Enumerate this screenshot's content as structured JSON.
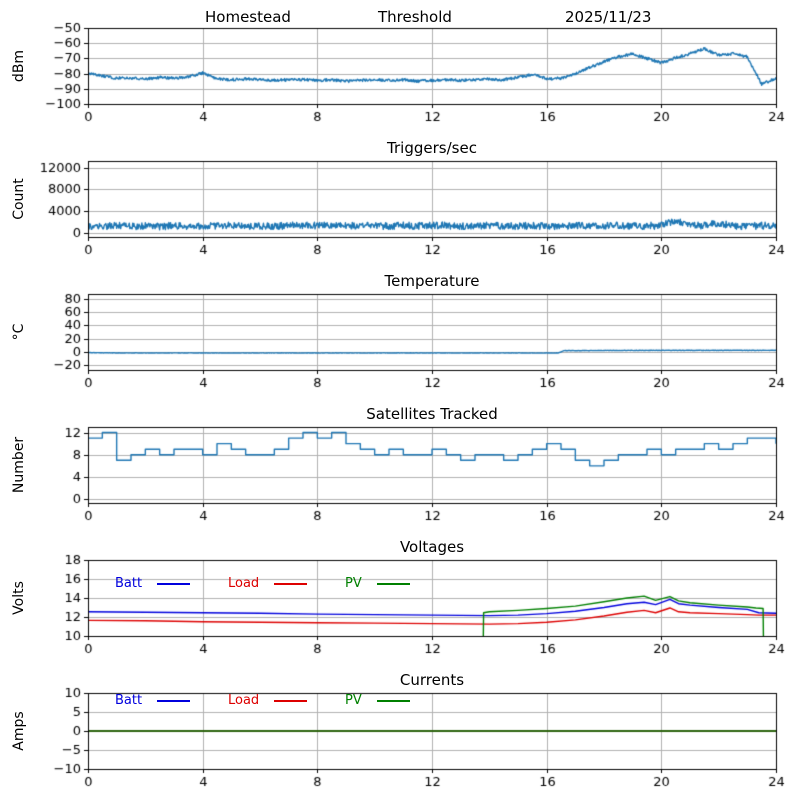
{
  "chart_data": [
    {
      "type": "line",
      "title": "",
      "title_parts": [
        "Homestead",
        "Threshold",
        "2025/11/23"
      ],
      "ylabel": "dBm",
      "xlim": [
        0,
        24
      ],
      "ylim": [
        -100,
        -50
      ],
      "xticks": [
        0,
        4,
        8,
        12,
        16,
        20,
        24
      ],
      "xtick_labels": [
        "0",
        "4",
        "8",
        "12",
        "16",
        "20",
        "24"
      ],
      "yticks": [
        -100,
        -90,
        -80,
        -70,
        -60,
        -50
      ],
      "ytick_labels": [
        "−100",
        "−90",
        "−80",
        "−70",
        "−60",
        "−50"
      ],
      "grid": true,
      "series": [
        {
          "name": "signal-strength",
          "color": "#1f77b4",
          "noise": 0.9,
          "x_start": 0,
          "x_step": 0.5,
          "y": [
            -80,
            -81.5,
            -83,
            -83,
            -83.5,
            -82.5,
            -83,
            -82,
            -79.5,
            -83.5,
            -84,
            -83.5,
            -84,
            -84.5,
            -84,
            -84,
            -84.5,
            -84,
            -85,
            -84.5,
            -84,
            -84.5,
            -84,
            -85,
            -84.5,
            -84,
            -84.5,
            -84,
            -83.5,
            -84,
            -82.5,
            -80.5,
            -83.5,
            -83,
            -80,
            -76,
            -72,
            -69,
            -67,
            -70,
            -73,
            -69.5,
            -67,
            -63.5,
            -68,
            -67,
            -69,
            -87,
            -83
          ]
        }
      ]
    },
    {
      "type": "line",
      "title": "Triggers/sec",
      "ylabel": "Count",
      "xlim": [
        0,
        24
      ],
      "ylim": [
        -800,
        13200
      ],
      "xticks": [
        0,
        4,
        8,
        12,
        16,
        20,
        24
      ],
      "xtick_labels": [
        "0",
        "4",
        "8",
        "12",
        "16",
        "20",
        "24"
      ],
      "yticks": [
        0,
        4000,
        8000,
        12000
      ],
      "ytick_labels": [
        "0",
        "4000",
        "8000",
        "12000"
      ],
      "grid": true,
      "series": [
        {
          "name": "trigger-rate",
          "color": "#1f77b4",
          "noise": 650,
          "x_start": 0,
          "x_step": 0.5,
          "y": [
            1250,
            1150,
            1300,
            1200,
            1250,
            1150,
            1300,
            1200,
            1100,
            1250,
            1300,
            1200,
            1250,
            1150,
            1300,
            1350,
            1300,
            1400,
            1350,
            1300,
            1250,
            1200,
            1300,
            1250,
            1350,
            1300,
            1200,
            1250,
            1300,
            1200,
            1250,
            1300,
            1200,
            1250,
            1300,
            1200,
            1250,
            1300,
            1200,
            1250,
            1300,
            2350,
            1250,
            1300,
            1800,
            1250,
            1200,
            1300,
            1250
          ]
        }
      ]
    },
    {
      "type": "line",
      "title": "Temperature",
      "ylabel": "°C",
      "xlim": [
        0,
        24
      ],
      "ylim": [
        -28,
        88
      ],
      "xticks": [
        0,
        4,
        8,
        12,
        16,
        20,
        24
      ],
      "xtick_labels": [
        "0",
        "4",
        "8",
        "12",
        "16",
        "20",
        "24"
      ],
      "yticks": [
        -20,
        0,
        20,
        40,
        60,
        80
      ],
      "ytick_labels": [
        "−20",
        "0",
        "20",
        "40",
        "60",
        "80"
      ],
      "grid": true,
      "series": [
        {
          "name": "temperature",
          "color": "#1f77b4",
          "noise": 0.3,
          "x": [
            0,
            1,
            2,
            4,
            6,
            8,
            10,
            12,
            14,
            16,
            16.4,
            16.6,
            17,
            18,
            20,
            22,
            24
          ],
          "y": [
            -1.5,
            -2,
            -2,
            -2,
            -2,
            -2,
            -2,
            -2,
            -2,
            -2,
            -2,
            1.5,
            1.6,
            1.8,
            2,
            2,
            2
          ]
        }
      ]
    },
    {
      "type": "line",
      "title": "Satellites Tracked",
      "ylabel": "Number",
      "xlim": [
        0,
        24
      ],
      "ylim": [
        -0.7,
        13
      ],
      "xticks": [
        0,
        4,
        8,
        12,
        16,
        20,
        24
      ],
      "xtick_labels": [
        "0",
        "4",
        "8",
        "12",
        "16",
        "20",
        "24"
      ],
      "yticks": [
        0,
        4,
        8,
        12
      ],
      "ytick_labels": [
        "0",
        "4",
        "8",
        "12"
      ],
      "grid": true,
      "series": [
        {
          "name": "satellites",
          "color": "#1f77b4",
          "step": true,
          "x_start": 0,
          "x_step": 0.5,
          "y": [
            11,
            12,
            7,
            8,
            9,
            8,
            9,
            9,
            8,
            10,
            9,
            8,
            8,
            9,
            11,
            12,
            11,
            12,
            10,
            9,
            8,
            9,
            8,
            8,
            9,
            8,
            7,
            8,
            8,
            7,
            8,
            9,
            10,
            9,
            7,
            6,
            7,
            8,
            8,
            9,
            8,
            9,
            9,
            10,
            9,
            10,
            11,
            11,
            10
          ]
        }
      ]
    },
    {
      "type": "line",
      "title": "Voltages",
      "ylabel": "Volts",
      "xlim": [
        0,
        24
      ],
      "ylim": [
        10,
        18
      ],
      "xticks": [
        0,
        4,
        8,
        12,
        16,
        20,
        24
      ],
      "xtick_labels": [
        "0",
        "4",
        "8",
        "12",
        "16",
        "20",
        "24"
      ],
      "yticks": [
        10,
        12,
        14,
        16,
        18
      ],
      "ytick_labels": [
        "10",
        "12",
        "14",
        "16",
        "18"
      ],
      "grid": true,
      "legend": [
        {
          "label": "Batt",
          "color": "#0000dd"
        },
        {
          "label": "Load",
          "color": "#dd0000"
        },
        {
          "label": "PV",
          "color": "#008000"
        }
      ],
      "series": [
        {
          "name": "batt-voltage",
          "color": "#0000dd",
          "x": [
            0,
            2,
            4,
            6,
            8,
            10,
            12,
            14,
            15,
            16,
            17,
            18,
            18.8,
            19.4,
            19.8,
            20.3,
            20.6,
            21,
            22,
            23,
            23.4,
            24
          ],
          "y": [
            12.55,
            12.5,
            12.45,
            12.4,
            12.3,
            12.25,
            12.2,
            12.15,
            12.2,
            12.35,
            12.6,
            13.0,
            13.4,
            13.55,
            13.3,
            13.85,
            13.4,
            13.25,
            13.0,
            12.8,
            12.45,
            12.4
          ]
        },
        {
          "name": "load-voltage",
          "color": "#dd0000",
          "x": [
            0,
            2,
            4,
            6,
            8,
            10,
            12,
            14,
            15,
            16,
            17,
            18,
            18.8,
            19.4,
            19.8,
            20.3,
            20.6,
            21,
            22,
            23,
            23.4,
            24
          ],
          "y": [
            11.65,
            11.6,
            11.5,
            11.45,
            11.4,
            11.35,
            11.3,
            11.25,
            11.3,
            11.45,
            11.7,
            12.1,
            12.5,
            12.7,
            12.45,
            12.95,
            12.55,
            12.45,
            12.35,
            12.25,
            12.2,
            12.2
          ]
        },
        {
          "name": "pv-voltage",
          "color": "#008000",
          "x": [
            0,
            13.75,
            13.8,
            14,
            15,
            16,
            17,
            18,
            18.8,
            19.4,
            19.8,
            20.3,
            20.6,
            21,
            22,
            23,
            23.3,
            23.55,
            23.6,
            24
          ],
          "y": [
            0,
            0,
            12.45,
            12.55,
            12.7,
            12.9,
            13.15,
            13.6,
            14.0,
            14.2,
            13.75,
            14.15,
            13.7,
            13.5,
            13.25,
            13.05,
            12.95,
            12.9,
            0,
            0
          ]
        }
      ]
    },
    {
      "type": "line",
      "title": "Currents",
      "ylabel": "Amps",
      "xlim": [
        0,
        24
      ],
      "ylim": [
        -10,
        10
      ],
      "xticks": [
        0,
        4,
        8,
        12,
        16,
        20,
        24
      ],
      "xtick_labels": [
        "0",
        "4",
        "8",
        "12",
        "16",
        "20",
        "24"
      ],
      "yticks": [
        -10,
        -5,
        0,
        5,
        10
      ],
      "ytick_labels": [
        "−10",
        "−5",
        "0",
        "5",
        "10"
      ],
      "grid": true,
      "legend": [
        {
          "label": "Batt",
          "color": "#0000dd"
        },
        {
          "label": "Load",
          "color": "#dd0000"
        },
        {
          "label": "PV",
          "color": "#008000"
        }
      ],
      "series": [
        {
          "name": "batt-current",
          "color": "#0000dd",
          "x": [
            0,
            24
          ],
          "y": [
            0,
            0
          ]
        },
        {
          "name": "load-current",
          "color": "#dd0000",
          "x": [
            0,
            24
          ],
          "y": [
            0,
            0
          ]
        },
        {
          "name": "pv-current",
          "color": "#008000",
          "x": [
            0,
            24
          ],
          "y": [
            0,
            0
          ]
        }
      ]
    }
  ]
}
